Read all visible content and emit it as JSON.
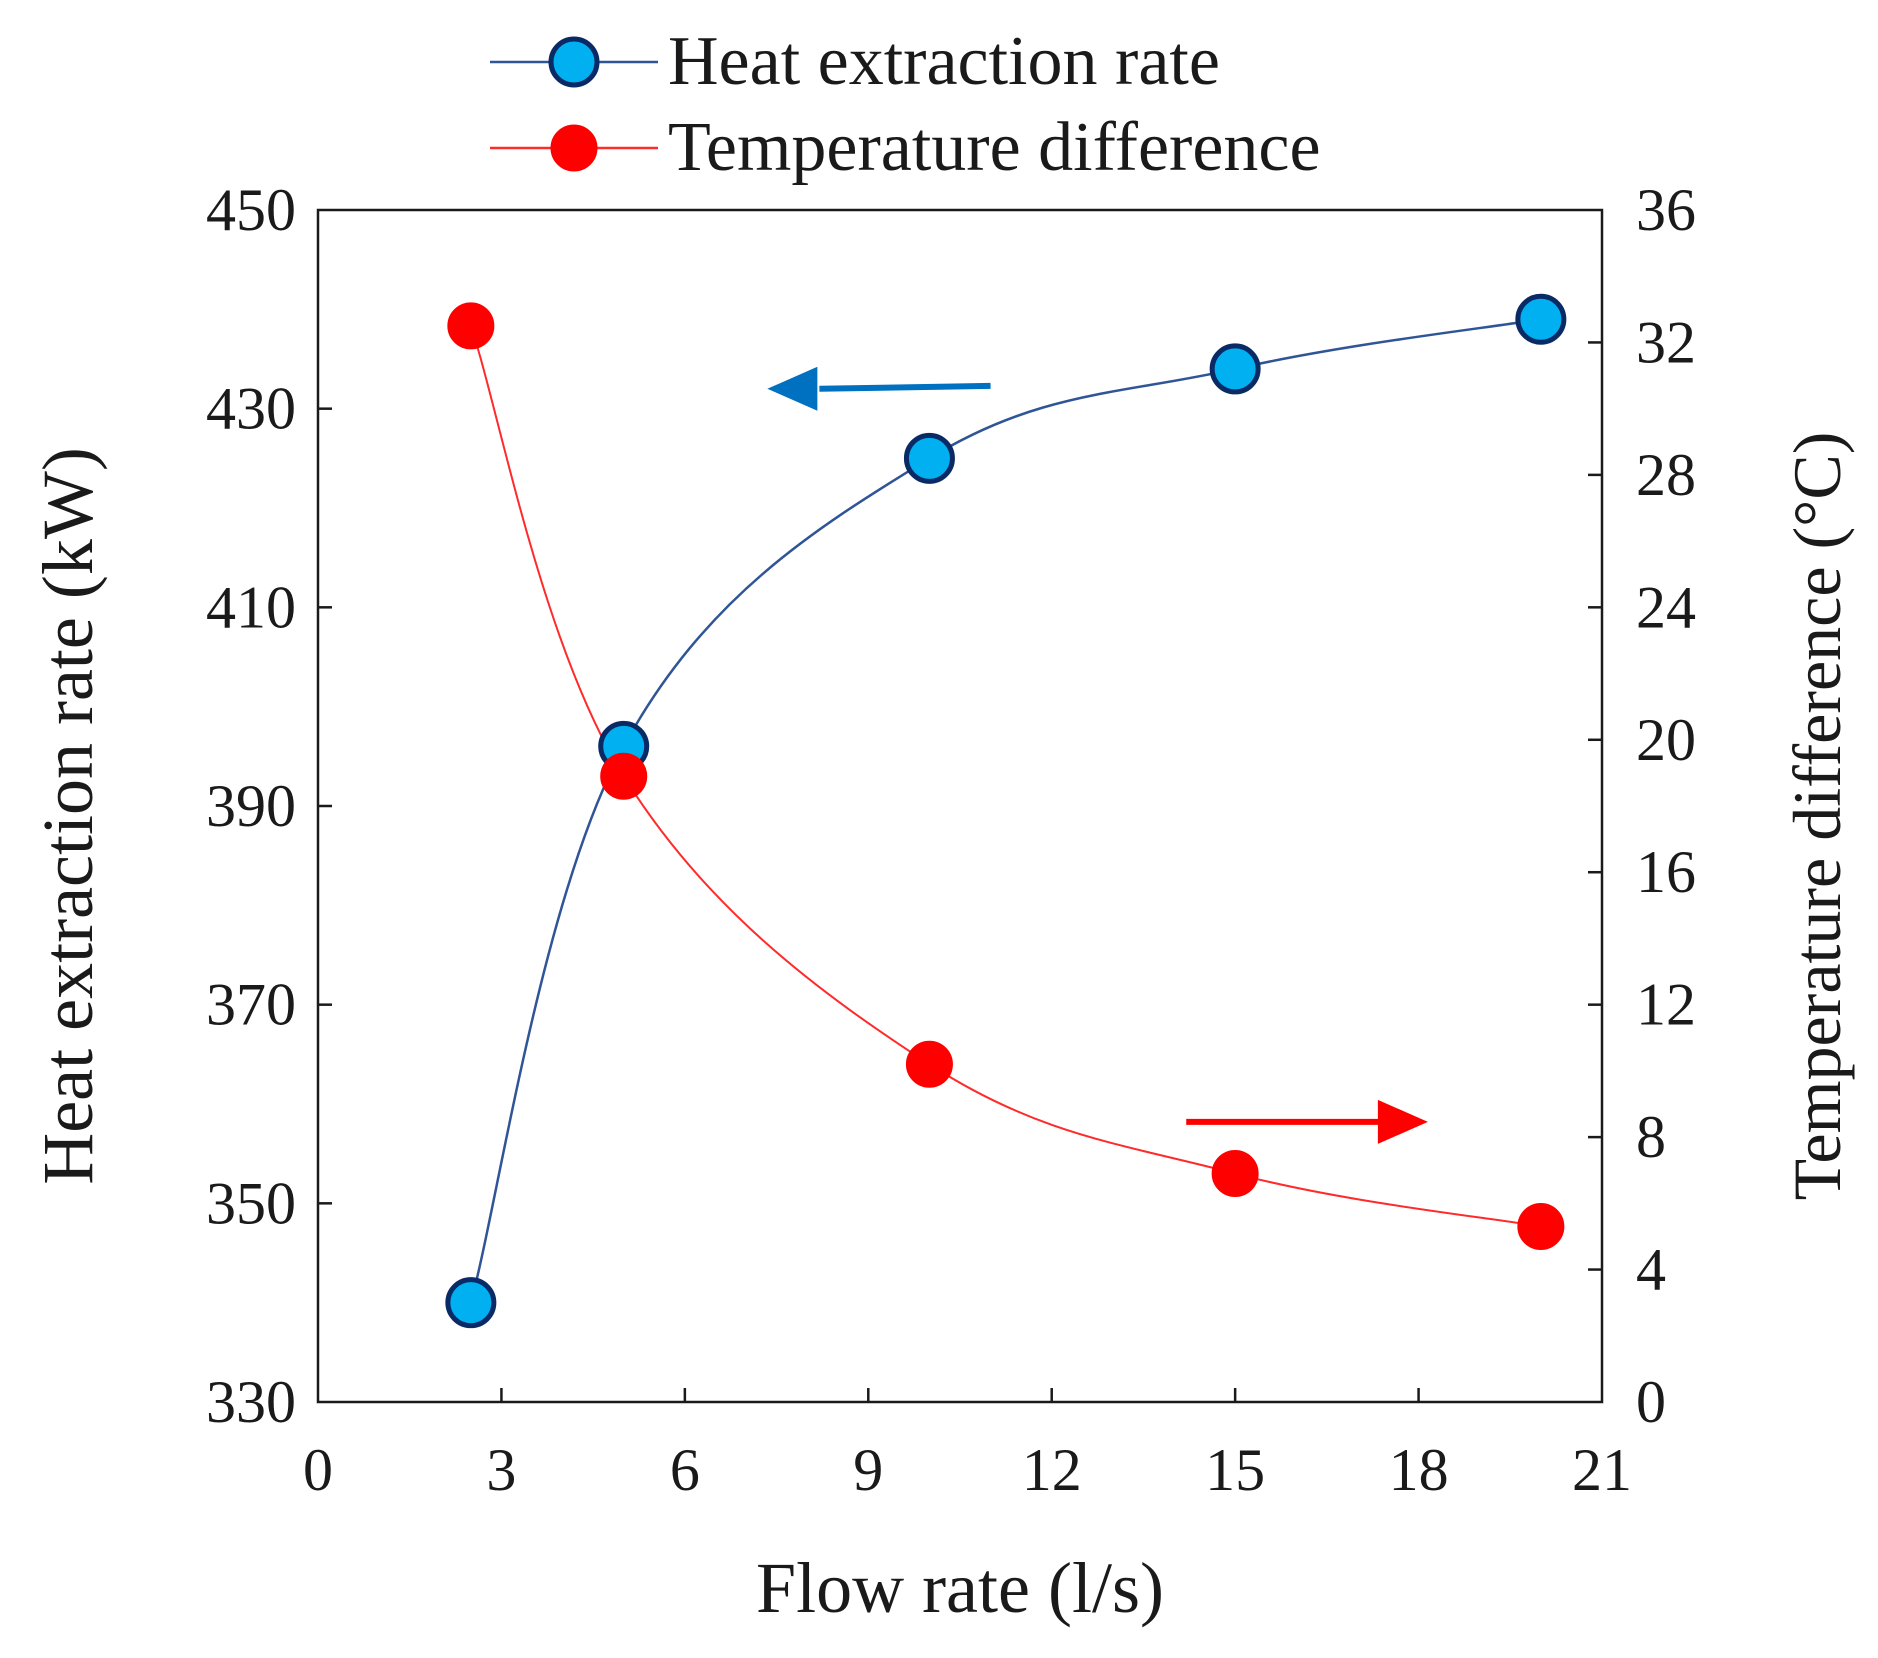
{
  "chart_data": {
    "type": "line",
    "x": [
      2.5,
      5,
      10,
      15,
      20
    ],
    "series": [
      {
        "name": "Heat extraction rate",
        "axis": "left",
        "color": "#00B0F0",
        "line_color": "#2F5597",
        "edge_color": "#0A2A66",
        "values": [
          340,
          396,
          425,
          434,
          439
        ]
      },
      {
        "name": "Temperature difference",
        "axis": "right",
        "color": "#FF0000",
        "line_color": "#FF2A2A",
        "edge_color": "#FF0000",
        "values": [
          32.5,
          18.9,
          10.2,
          6.9,
          5.3
        ]
      }
    ],
    "xlabel": "Flow rate (l/s)",
    "ylabel_left": "Heat extraction rate (kW)",
    "ylabel_right": "Temperature difference (°C)",
    "xlim": [
      0,
      21
    ],
    "xticks": [
      0,
      3,
      6,
      9,
      12,
      15,
      18,
      21
    ],
    "ylim_left": [
      330,
      450
    ],
    "yticks_left": [
      330,
      350,
      370,
      390,
      410,
      430,
      450
    ],
    "ylim_right": [
      0,
      36
    ],
    "yticks_right": [
      0,
      4,
      8,
      12,
      16,
      20,
      24,
      28,
      32,
      36
    ],
    "legend_position": "top",
    "annotations": [
      {
        "type": "arrow",
        "direction": "left",
        "points_to": "left axis",
        "color": "#0070C0"
      },
      {
        "type": "arrow",
        "direction": "right",
        "points_to": "right axis",
        "color": "#FF0000"
      }
    ],
    "grid": false
  }
}
